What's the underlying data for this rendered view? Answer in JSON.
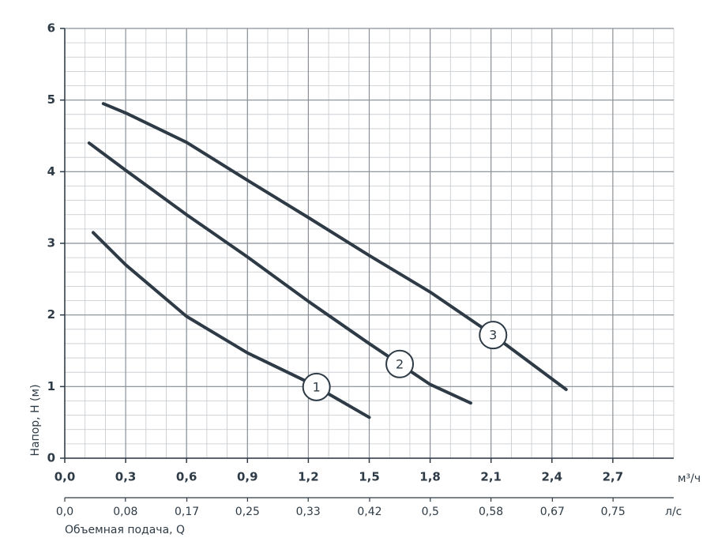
{
  "chart_data": {
    "type": "line",
    "y_label": "Напор, H (м)",
    "x_unit": "м³/ч",
    "x2_unit": "л/с",
    "x2_label": "Объемная подача, Q",
    "xlim": [
      0,
      3
    ],
    "xticks": [
      {
        "value": 0,
        "label": "0,0"
      },
      {
        "value": 0.3,
        "label": "0,3"
      },
      {
        "value": 0.6,
        "label": "0,6"
      },
      {
        "value": 0.9,
        "label": "0,9"
      },
      {
        "value": 1.2,
        "label": "1,2"
      },
      {
        "value": 1.5,
        "label": "1,5"
      },
      {
        "value": 1.8,
        "label": "1,8"
      },
      {
        "value": 2.1,
        "label": "2,1"
      },
      {
        "value": 2.4,
        "label": "2,4"
      },
      {
        "value": 2.7,
        "label": "2,7"
      }
    ],
    "x2lim": [
      0,
      0.833
    ],
    "x2ticks": [
      {
        "value": 0,
        "label": "0,0"
      },
      {
        "value": 0.083,
        "label": "0,08"
      },
      {
        "value": 0.167,
        "label": "0,17"
      },
      {
        "value": 0.25,
        "label": "0,25"
      },
      {
        "value": 0.333,
        "label": "0,33"
      },
      {
        "value": 0.417,
        "label": "0,42"
      },
      {
        "value": 0.5,
        "label": "0,5"
      },
      {
        "value": 0.583,
        "label": "0,58"
      },
      {
        "value": 0.667,
        "label": "0,67"
      },
      {
        "value": 0.75,
        "label": "0,75"
      }
    ],
    "ylim": [
      0,
      6
    ],
    "yticks": [
      0,
      1,
      2,
      3,
      4,
      5,
      6
    ],
    "grid": true,
    "series": [
      {
        "name": "1",
        "color": "#2e3b46",
        "x": [
          0.14,
          0.3,
          0.6,
          0.9,
          1.2,
          1.5
        ],
        "values": [
          3.15,
          2.7,
          1.98,
          1.47,
          1.06,
          0.57
        ]
      },
      {
        "name": "2",
        "color": "#2e3b46",
        "x": [
          0.12,
          0.3,
          0.6,
          0.9,
          1.2,
          1.5,
          1.8,
          2.0
        ],
        "values": [
          4.4,
          4.02,
          3.4,
          2.81,
          2.19,
          1.6,
          1.03,
          0.77
        ]
      },
      {
        "name": "3",
        "color": "#2e3b46",
        "x": [
          0.19,
          0.3,
          0.6,
          0.9,
          1.2,
          1.5,
          1.8,
          2.1,
          2.47
        ],
        "values": [
          4.95,
          4.82,
          4.41,
          3.88,
          3.36,
          2.83,
          2.32,
          1.74,
          0.96
        ]
      }
    ]
  }
}
